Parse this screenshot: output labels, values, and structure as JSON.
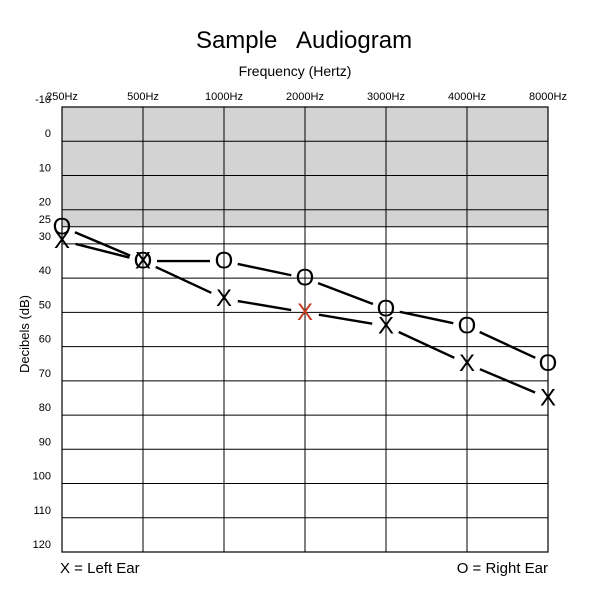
{
  "chart_data": {
    "type": "line",
    "title": "Sample   Audiogram",
    "subtitle": "Frequency (Hertz)",
    "xlabel": "Frequency (Hertz)",
    "ylabel": "Decibels (dB)",
    "categories": [
      "250Hz",
      "500Hz",
      "1000Hz",
      "2000Hz",
      "3000Hz",
      "4000Hz",
      "8000Hz"
    ],
    "y_ticks": [
      -10,
      0,
      10,
      20,
      25,
      30,
      40,
      50,
      60,
      70,
      80,
      90,
      100,
      110,
      120
    ],
    "ylim": [
      -10,
      120
    ],
    "y_inverted": true,
    "shaded_band": {
      "from": -10,
      "to": 25,
      "color": "#d3d3d3"
    },
    "grid": true,
    "series": [
      {
        "name": "Left Ear",
        "symbol": "X",
        "color": "#000000",
        "values": [
          29,
          35,
          46,
          50,
          54,
          65,
          75
        ],
        "highlight_index": 3,
        "highlight_color": "#c23b22"
      },
      {
        "name": "Right Ear",
        "symbol": "O",
        "color": "#000000",
        "values": [
          25,
          35,
          35,
          40,
          49,
          54,
          65
        ]
      }
    ],
    "legend": [
      {
        "text": "X = Left Ear",
        "position": "bottom-left"
      },
      {
        "text": "O = Right Ear",
        "position": "bottom-right"
      }
    ]
  }
}
